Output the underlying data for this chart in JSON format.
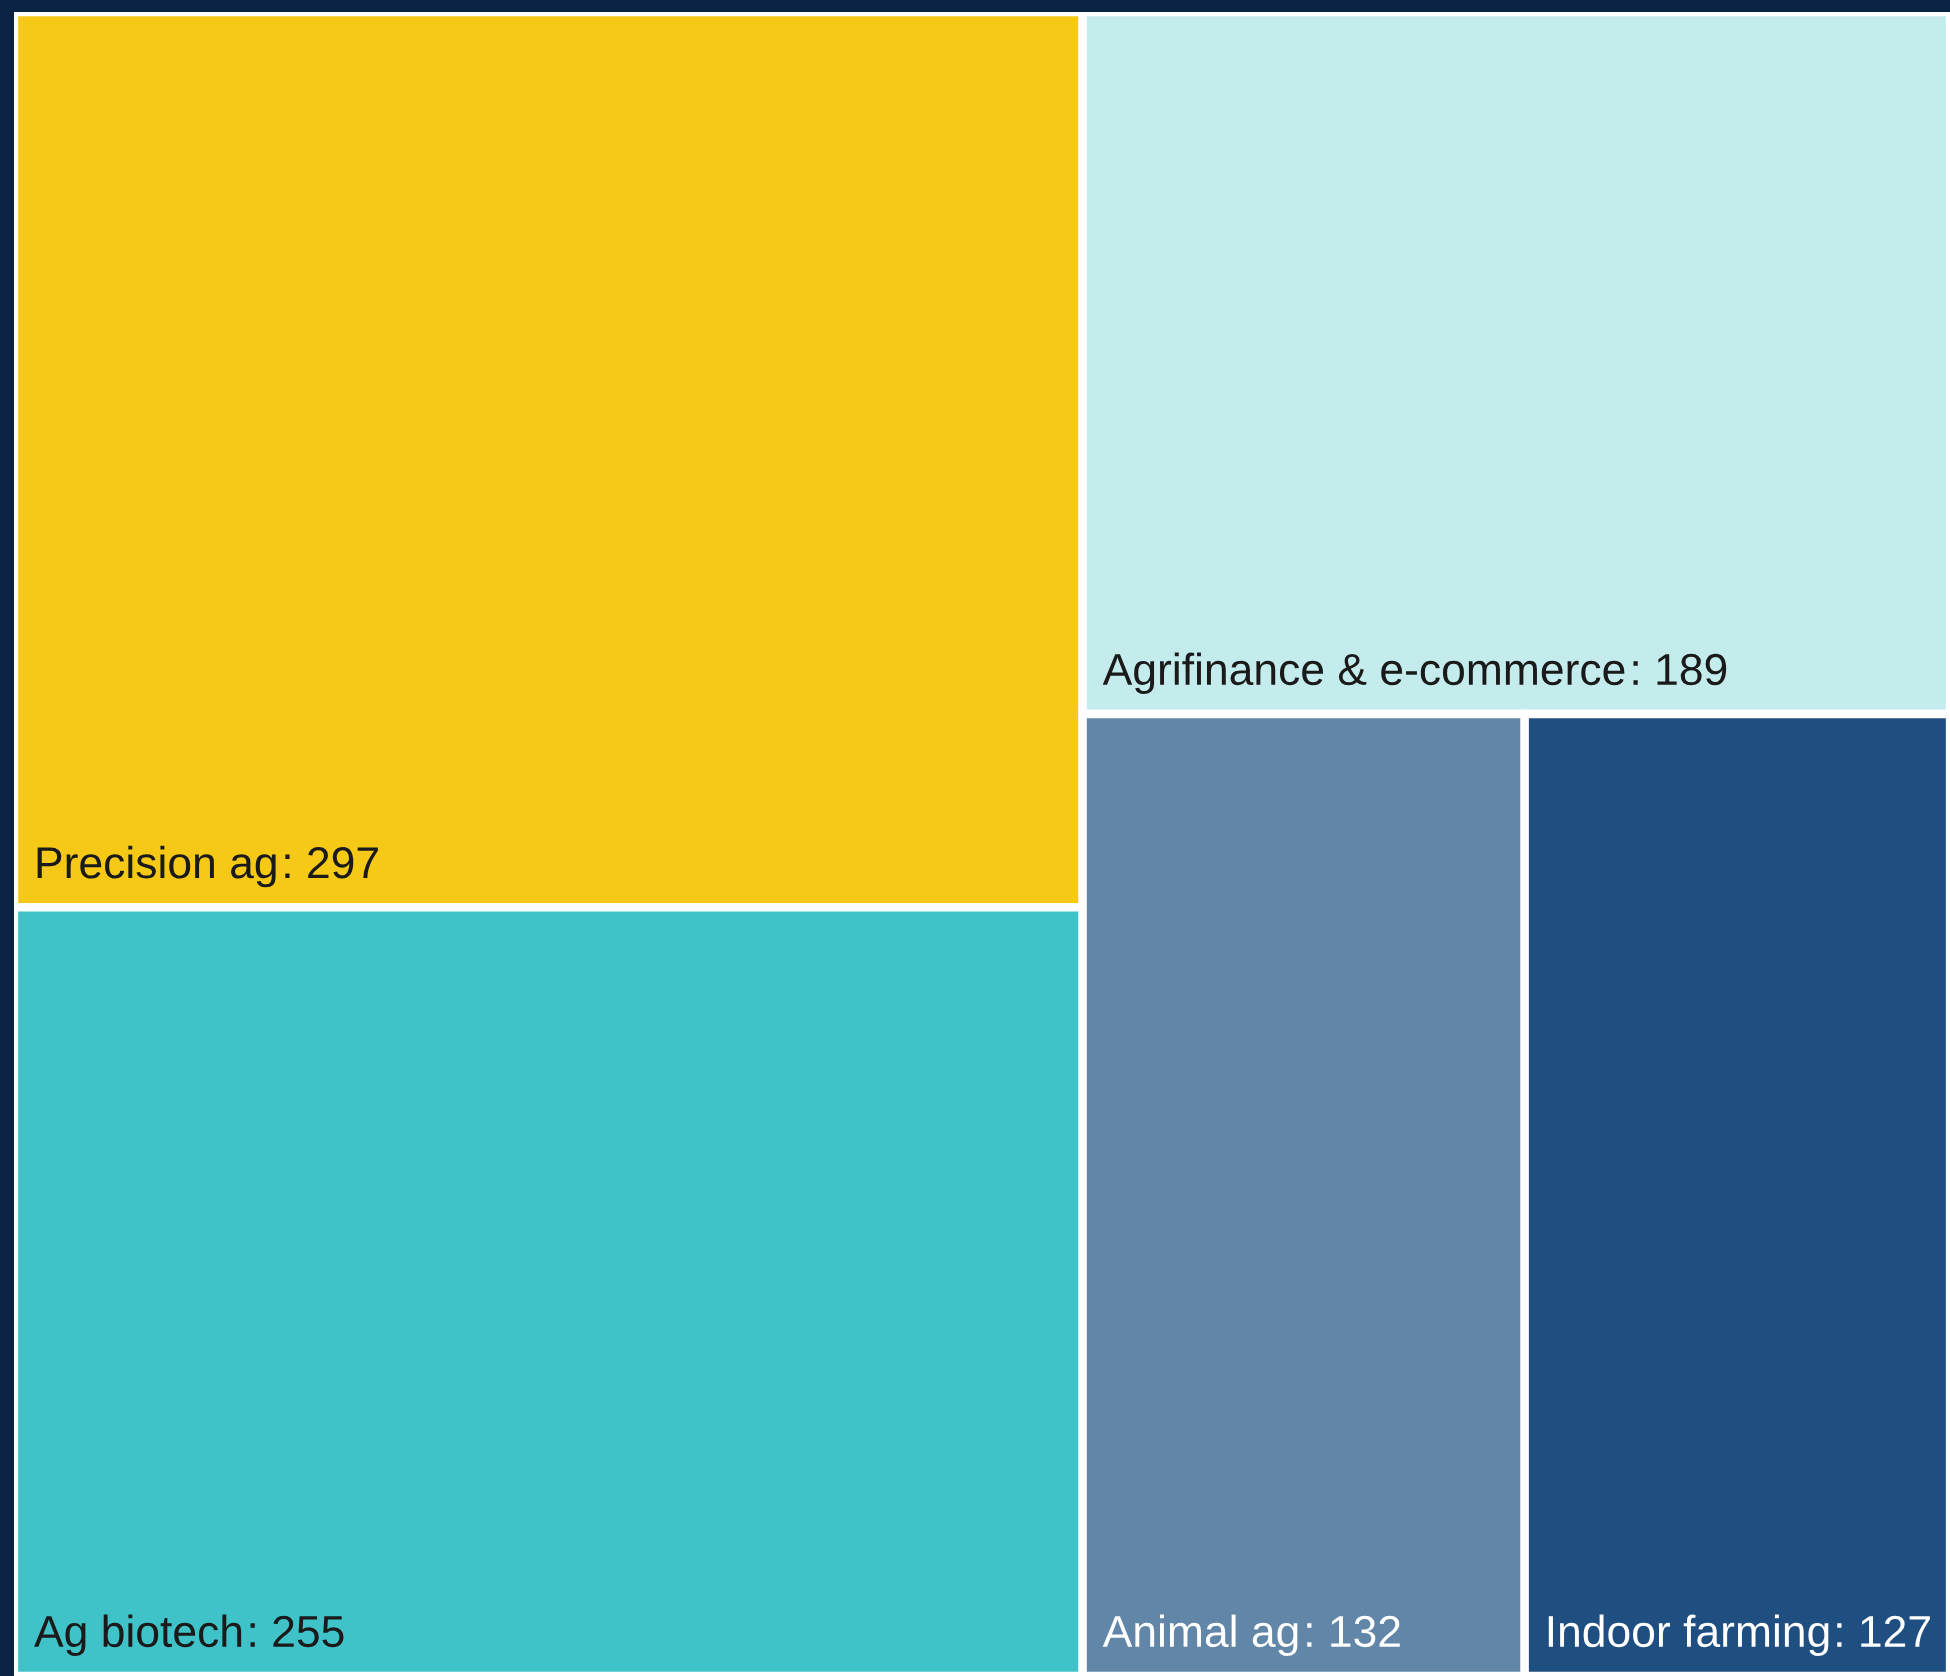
{
  "chart_data": {
    "type": "other",
    "categories": [
      "Precision ag",
      "Ag biotech",
      "Agrifinance & e-commerce",
      "Animal ag",
      "Indoor farming"
    ],
    "values": [
      297,
      255,
      189,
      132,
      127
    ],
    "colors": [
      "#f5c916",
      "#3fc3c8",
      "#c5ecec",
      "#6286a8",
      "#1f4f80"
    ],
    "value_labels": [
      ": 297",
      ": 255",
      ": 189",
      ": 132",
      ": 127"
    ]
  }
}
